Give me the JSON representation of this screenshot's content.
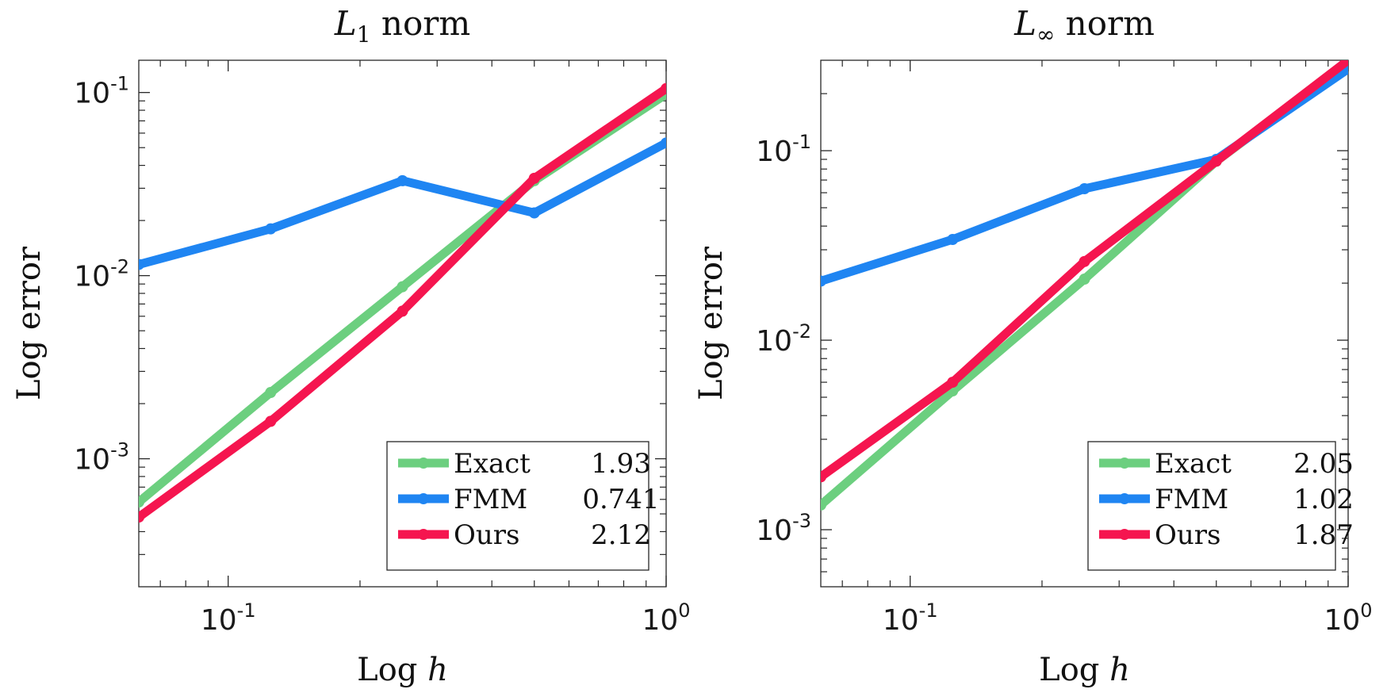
{
  "chart_data": [
    {
      "type": "line",
      "title": {
        "symbol": "L",
        "subscript": "1",
        "rest": " norm"
      },
      "xlabel": {
        "text": "Log ",
        "var": "h"
      },
      "ylabel": "Log error",
      "xscale": "log",
      "yscale": "log",
      "xlim": [
        0.0625,
        1
      ],
      "ylim": [
        0.0002,
        0.15
      ],
      "xticks": [
        {
          "value": 0.1,
          "base": "10",
          "exp": "-1"
        },
        {
          "value": 1,
          "base": "10",
          "exp": "0"
        }
      ],
      "yticks": [
        {
          "value": 0.001,
          "base": "10",
          "exp": "-3"
        },
        {
          "value": 0.01,
          "base": "10",
          "exp": "-2"
        },
        {
          "value": 0.1,
          "base": "10",
          "exp": "-1"
        }
      ],
      "grid": false,
      "legend_position": "bottom-right",
      "x": [
        0.0625,
        0.125,
        0.25,
        0.5,
        1
      ],
      "series": [
        {
          "name": "Exact",
          "rate": "1.93",
          "color": "#6ccf7f",
          "values": [
            0.00058,
            0.0023,
            0.0087,
            0.033,
            0.098
          ]
        },
        {
          "name": "FMM",
          "rate": "0.741",
          "color": "#1f85f2",
          "values": [
            0.0115,
            0.018,
            0.033,
            0.022,
            0.053
          ]
        },
        {
          "name": "Ours",
          "rate": "2.12",
          "color": "#f5154f",
          "values": [
            0.00048,
            0.0016,
            0.0064,
            0.034,
            0.105
          ]
        }
      ]
    },
    {
      "type": "line",
      "title": {
        "symbol": "L",
        "subscript": "∞",
        "rest": " norm"
      },
      "xlabel": {
        "text": "Log ",
        "var": "h"
      },
      "ylabel": "Log error",
      "xscale": "log",
      "yscale": "log",
      "xlim": [
        0.0625,
        1
      ],
      "ylim": [
        0.0005,
        0.3
      ],
      "xticks": [
        {
          "value": 0.1,
          "base": "10",
          "exp": "-1"
        },
        {
          "value": 1,
          "base": "10",
          "exp": "0"
        }
      ],
      "yticks": [
        {
          "value": 0.001,
          "base": "10",
          "exp": "-3"
        },
        {
          "value": 0.01,
          "base": "10",
          "exp": "-2"
        },
        {
          "value": 0.1,
          "base": "10",
          "exp": "-1"
        }
      ],
      "grid": false,
      "legend_position": "bottom-right",
      "x": [
        0.0625,
        0.125,
        0.25,
        0.5,
        1
      ],
      "series": [
        {
          "name": "Exact",
          "rate": "2.05",
          "color": "#6ccf7f",
          "values": [
            0.00135,
            0.0054,
            0.021,
            0.088,
            0.29
          ]
        },
        {
          "name": "FMM",
          "rate": "1.02",
          "color": "#1f85f2",
          "values": [
            0.0205,
            0.034,
            0.063,
            0.09,
            0.27
          ]
        },
        {
          "name": "Ours",
          "rate": "1.87",
          "color": "#f5154f",
          "values": [
            0.0019,
            0.006,
            0.026,
            0.088,
            0.3
          ]
        }
      ]
    }
  ]
}
